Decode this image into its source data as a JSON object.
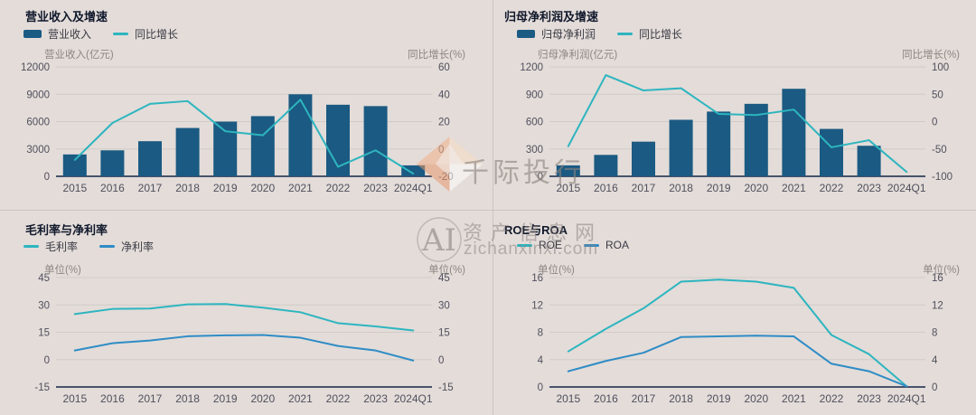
{
  "watermarks": {
    "brand": "千际投行",
    "ai_label": "AI",
    "site_name": "资产信息网",
    "site_domain": "zichanxinxi.com"
  },
  "colors": {
    "bar": "#1b5a82",
    "teal": "#2db5bf",
    "blue": "#2e8cc5",
    "grid": "#d1cbc8",
    "axis": "#47536b",
    "background": "#e3dcd9",
    "divider": "#cbc4c1",
    "watermark": "#8d847e"
  },
  "chart_data": [
    {
      "id": "revenue-growth",
      "type": "bar+line",
      "title": "营业收入及增速",
      "categories": [
        "2015",
        "2016",
        "2017",
        "2018",
        "2019",
        "2020",
        "2021",
        "2022",
        "2023",
        "2024Q1"
      ],
      "left_axis": {
        "label": "营业收入(亿元)",
        "ticks": [
          12000,
          9000,
          6000,
          3000,
          0
        ]
      },
      "right_axis": {
        "label": "同比增长(%)",
        "ticks": [
          60,
          40,
          20,
          0,
          -20
        ]
      },
      "series": [
        {
          "name": "营业收入",
          "type": "bar",
          "axis": "left",
          "color": "bar",
          "values": [
            2400,
            2850,
            3850,
            5300,
            6000,
            6600,
            9000,
            7850,
            7700,
            1200
          ]
        },
        {
          "name": "同比增长",
          "type": "line",
          "axis": "right",
          "color": "teal",
          "values": [
            -8,
            19,
            33,
            35,
            13,
            10,
            36,
            -13,
            -1,
            -18
          ]
        }
      ]
    },
    {
      "id": "net-profit-growth",
      "type": "bar+line",
      "title": "归母净利润及增速",
      "categories": [
        "2015",
        "2016",
        "2017",
        "2018",
        "2019",
        "2020",
        "2021",
        "2022",
        "2023",
        "2024Q1"
      ],
      "left_axis": {
        "label": "归母净利润(亿元)",
        "ticks": [
          1200,
          900,
          600,
          300,
          0
        ]
      },
      "right_axis": {
        "label": "同比增长(%)",
        "ticks": [
          100,
          50,
          0,
          -50,
          -100
        ]
      },
      "series": [
        {
          "name": "归母净利润",
          "type": "bar",
          "axis": "left",
          "color": "bar",
          "values": [
            120,
            235,
            380,
            620,
            710,
            795,
            960,
            520,
            335,
            0
          ]
        },
        {
          "name": "同比增长",
          "type": "line",
          "axis": "right",
          "color": "teal",
          "values": [
            -45,
            85,
            57,
            61,
            14,
            12,
            22,
            -47,
            -34,
            -92
          ]
        }
      ]
    },
    {
      "id": "margins",
      "type": "line",
      "title": "毛利率与净利率",
      "categories": [
        "2015",
        "2016",
        "2017",
        "2018",
        "2019",
        "2020",
        "2021",
        "2022",
        "2023",
        "2024Q1"
      ],
      "left_axis": {
        "label": "单位(%)",
        "ticks": [
          45,
          30,
          15,
          0,
          -15
        ]
      },
      "right_axis": {
        "label": "单位(%)",
        "ticks": [
          45,
          30,
          15,
          0,
          -15
        ]
      },
      "series": [
        {
          "name": "毛利率",
          "type": "line",
          "axis": "left",
          "color": "teal",
          "values": [
            25,
            27.8,
            28,
            30.3,
            30.5,
            28.5,
            26,
            20,
            18.2,
            16
          ]
        },
        {
          "name": "净利率",
          "type": "line",
          "axis": "left",
          "color": "blue",
          "values": [
            5,
            9,
            10.5,
            12.8,
            13.3,
            13.5,
            12,
            7.5,
            5,
            -0.5
          ]
        }
      ]
    },
    {
      "id": "roe-roa",
      "type": "line",
      "title": "ROE与ROA",
      "categories": [
        "2015",
        "2016",
        "2017",
        "2018",
        "2019",
        "2020",
        "2021",
        "2022",
        "2023",
        "2024Q1"
      ],
      "left_axis": {
        "label": "单位(%)",
        "ticks": [
          16,
          12,
          8,
          4,
          0
        ]
      },
      "right_axis": {
        "label": "单位(%)",
        "ticks": [
          16,
          12,
          8,
          4,
          0
        ]
      },
      "series": [
        {
          "name": "ROE",
          "type": "line",
          "axis": "left",
          "color": "teal",
          "values": [
            5.2,
            8.5,
            11.5,
            15.4,
            15.7,
            15.4,
            14.5,
            7.6,
            4.8,
            0.1
          ]
        },
        {
          "name": "ROA",
          "type": "line",
          "axis": "left",
          "color": "blue",
          "values": [
            2.3,
            3.8,
            5.0,
            7.3,
            7.4,
            7.5,
            7.4,
            3.4,
            2.3,
            0.1
          ]
        }
      ]
    }
  ]
}
